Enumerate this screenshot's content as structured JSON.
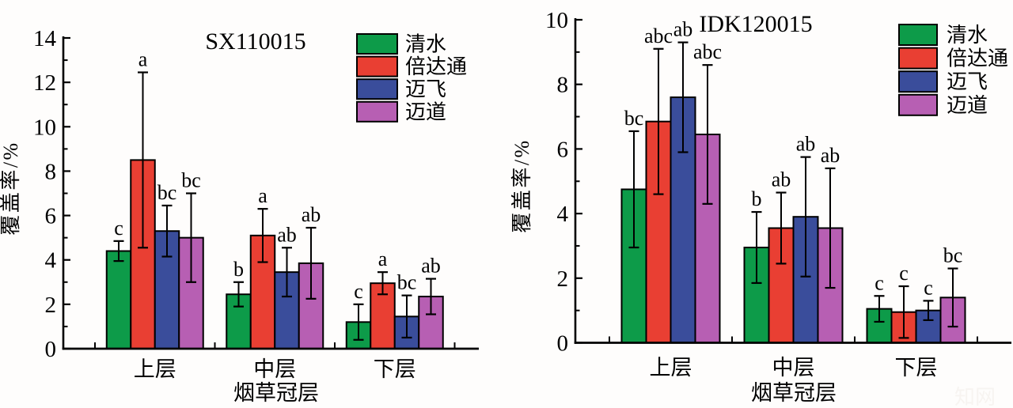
{
  "figure": {
    "watermark": "知网",
    "background": "#fefdfc",
    "series_colors": {
      "清水": "#0D9B49",
      "倍达通": "#E93F33",
      "迈飞": "#3A4D9B",
      "迈道": "#B75FB3"
    }
  },
  "chart_data": [
    {
      "type": "bar",
      "title": "SX110015",
      "ylabel": "覆盖率/%",
      "xlabel": "烟草冠层",
      "categories": [
        "上层",
        "中层",
        "下层"
      ],
      "ylim": [
        0,
        14
      ],
      "ytick_step": 2,
      "grid": false,
      "legend_position": "top-right",
      "error_bars": true,
      "series": [
        {
          "name": "清水",
          "color": "#0D9B49",
          "values": [
            4.4,
            2.45,
            1.2
          ],
          "errors": [
            0.45,
            0.55,
            0.8
          ],
          "sig_letters": [
            "c",
            "b",
            "c"
          ]
        },
        {
          "name": "倍达通",
          "color": "#E93F33",
          "values": [
            8.5,
            5.1,
            2.95
          ],
          "errors": [
            3.95,
            1.2,
            0.5
          ],
          "sig_letters": [
            "a",
            "a",
            "a"
          ]
        },
        {
          "name": "迈飞",
          "color": "#3A4D9B",
          "values": [
            5.3,
            3.45,
            1.45
          ],
          "errors": [
            1.15,
            1.1,
            0.95
          ],
          "sig_letters": [
            "bc",
            "ab",
            "bc"
          ]
        },
        {
          "name": "迈道",
          "color": "#B75FB3",
          "values": [
            5.0,
            3.85,
            2.35
          ],
          "errors": [
            2.0,
            1.6,
            0.8
          ],
          "sig_letters": [
            "bc",
            "ab",
            "ab"
          ]
        }
      ]
    },
    {
      "type": "bar",
      "title": "IDK120015",
      "ylabel": "覆盖率/%",
      "xlabel": "烟草冠层",
      "categories": [
        "上层",
        "中层",
        "下层"
      ],
      "ylim": [
        0,
        10
      ],
      "ytick_step": 2,
      "grid": false,
      "legend_position": "top-right",
      "error_bars": true,
      "series": [
        {
          "name": "清水",
          "color": "#0D9B49",
          "values": [
            4.75,
            2.95,
            1.05
          ],
          "errors": [
            1.8,
            1.1,
            0.4
          ],
          "sig_letters": [
            "bc",
            "b",
            "c"
          ]
        },
        {
          "name": "倍达通",
          "color": "#E93F33",
          "values": [
            6.85,
            3.55,
            0.95
          ],
          "errors": [
            2.25,
            1.1,
            0.8
          ],
          "sig_letters": [
            "abc",
            "ab",
            "c"
          ]
        },
        {
          "name": "迈飞",
          "color": "#3A4D9B",
          "values": [
            7.6,
            3.9,
            1.0
          ],
          "errors": [
            1.7,
            1.85,
            0.3
          ],
          "sig_letters": [
            "ab",
            "ab",
            "c"
          ]
        },
        {
          "name": "迈道",
          "color": "#B75FB3",
          "values": [
            6.45,
            3.55,
            1.4
          ],
          "errors": [
            2.15,
            1.85,
            0.9
          ],
          "sig_letters": [
            "abc",
            "ab",
            "bc"
          ]
        }
      ]
    }
  ]
}
